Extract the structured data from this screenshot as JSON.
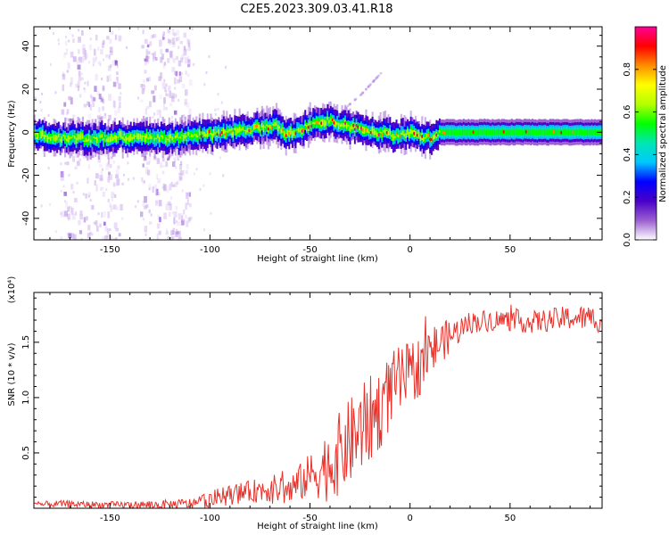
{
  "figure": {
    "title": "C2E5.2023.309.03.41.R18"
  },
  "chart_data": [
    {
      "type": "heatmap",
      "xlabel": "Height of straight line (km)",
      "ylabel": "Frequency (Hz)",
      "xlim": [
        -188,
        96
      ],
      "ylim": [
        -50,
        49
      ],
      "xticks": [
        -150,
        -100,
        -50,
        0,
        50
      ],
      "yticks": [
        -40,
        -20,
        0,
        20,
        40
      ],
      "colorbar": {
        "label": "Normalized spectral amplitude",
        "range": [
          0,
          1
        ],
        "ticks": [
          "0.0",
          "0.2",
          "0.4",
          "0.6",
          "0.8"
        ],
        "colormap": [
          "#ffffff",
          "#9b5fd1",
          "#4a00c8",
          "#0000ff",
          "#00c8ff",
          "#00e6b4",
          "#00ff00",
          "#b4ff00",
          "#ffff00",
          "#ff8c00",
          "#ff0000",
          "#ff0096"
        ]
      },
      "center_line": [
        [
          -188,
          -1
        ],
        [
          -175,
          -2.5
        ],
        [
          -160,
          -3
        ],
        [
          -145,
          -2
        ],
        [
          -130,
          -3
        ],
        [
          -115,
          -2.5
        ],
        [
          -105,
          -1
        ],
        [
          -95,
          -0.5
        ],
        [
          -85,
          0.5
        ],
        [
          -75,
          2
        ],
        [
          -68,
          3.5
        ],
        [
          -62,
          -1
        ],
        [
          -55,
          1.5
        ],
        [
          -48,
          4
        ],
        [
          -40,
          6
        ],
        [
          -35,
          3.5
        ],
        [
          -28,
          2
        ],
        [
          -20,
          1
        ],
        [
          -12,
          -1
        ],
        [
          -5,
          -1.5
        ],
        [
          0,
          0
        ],
        [
          5,
          -2
        ],
        [
          10,
          -2.5
        ],
        [
          15,
          0
        ],
        [
          30,
          0
        ],
        [
          50,
          0
        ],
        [
          75,
          0
        ],
        [
          96,
          0
        ]
      ],
      "streak": [
        [
          -40,
          6
        ],
        [
          -25,
          18
        ],
        [
          -15,
          28
        ]
      ],
      "noise_columns": [
        [
          -175,
          -145
        ],
        [
          -135,
          -110
        ]
      ]
    },
    {
      "type": "line",
      "xlabel": "Height of straight line (km)",
      "ylabel": "SNR (10 * v/v)",
      "y_multiplier": "(x10⁴)",
      "xlim": [
        -188,
        96
      ],
      "ylim": [
        0,
        1.95
      ],
      "xticks": [
        -150,
        -100,
        -50,
        0,
        50
      ],
      "yticks": [
        "0.5",
        "1.0",
        "1.5"
      ],
      "ytick_values": [
        0.5,
        1.0,
        1.5
      ],
      "line_color": "#e8312a",
      "envelope_mean": [
        [
          -188,
          0.03
        ],
        [
          -175,
          0.04
        ],
        [
          -150,
          0.03
        ],
        [
          -125,
          0.03
        ],
        [
          -110,
          0.04
        ],
        [
          -100,
          0.08
        ],
        [
          -90,
          0.12
        ],
        [
          -80,
          0.15
        ],
        [
          -70,
          0.18
        ],
        [
          -60,
          0.16
        ],
        [
          -50,
          0.3
        ],
        [
          -45,
          0.35
        ],
        [
          -40,
          0.4
        ],
        [
          -35,
          0.5
        ],
        [
          -30,
          0.6
        ],
        [
          -25,
          0.7
        ],
        [
          -20,
          0.8
        ],
        [
          -15,
          0.9
        ],
        [
          -10,
          1.05
        ],
        [
          -5,
          1.15
        ],
        [
          0,
          1.2
        ],
        [
          5,
          1.3
        ],
        [
          10,
          1.4
        ],
        [
          15,
          1.5
        ],
        [
          20,
          1.55
        ],
        [
          25,
          1.62
        ],
        [
          30,
          1.68
        ],
        [
          40,
          1.7
        ],
        [
          50,
          1.7
        ],
        [
          60,
          1.68
        ],
        [
          70,
          1.7
        ],
        [
          80,
          1.72
        ],
        [
          90,
          1.72
        ],
        [
          96,
          1.7
        ]
      ],
      "envelope_noise": [
        [
          -188,
          0.03
        ],
        [
          -150,
          0.03
        ],
        [
          -110,
          0.05
        ],
        [
          -100,
          0.08
        ],
        [
          -80,
          0.1
        ],
        [
          -60,
          0.15
        ],
        [
          -50,
          0.2
        ],
        [
          -40,
          0.35
        ],
        [
          -30,
          0.4
        ],
        [
          -20,
          0.4
        ],
        [
          -10,
          0.35
        ],
        [
          0,
          0.3
        ],
        [
          10,
          0.25
        ],
        [
          20,
          0.15
        ],
        [
          30,
          0.1
        ],
        [
          60,
          0.1
        ],
        [
          96,
          0.12
        ]
      ]
    }
  ]
}
